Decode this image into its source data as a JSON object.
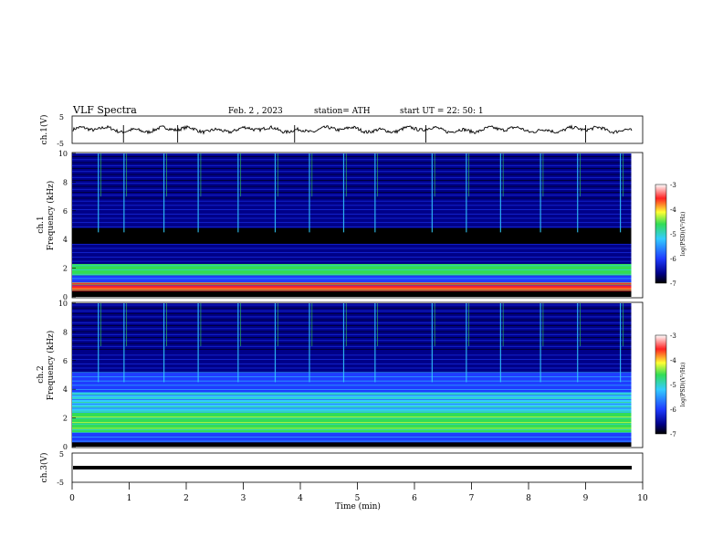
{
  "header": {
    "title": "VLF Spectra",
    "date": "Feb. 2 , 2023",
    "station": "station= ATH",
    "start": "start UT = 22: 50: 1"
  },
  "colors": {
    "black": "#000000",
    "navy": "#000088",
    "blue": "#1f3cff",
    "cyan": "#33ccff",
    "green": "#33dd55",
    "yellow": "#ffff33",
    "red": "#ff2222",
    "white": "#ffffff"
  },
  "chart_data": [
    {
      "type": "line",
      "panel": "ch1-waveform",
      "ylabel": "ch.1(V)",
      "ylim": [
        -5,
        5
      ],
      "yticks": [
        "5",
        "-5"
      ],
      "xlim": [
        0,
        10
      ],
      "signal": "low-amplitude noisy waveform near 0 V with occasional spikes",
      "spike_times_min": [
        0.9,
        1.85,
        3.9,
        6.2,
        9.0
      ]
    },
    {
      "type": "heatmap",
      "panel": "ch1-spectrogram",
      "ylabel": "ch.1 Frequency (kHz)",
      "ylim": [
        0,
        10
      ],
      "yticks": [
        "10",
        "8",
        "6",
        "4",
        "2",
        "0"
      ],
      "xlim": [
        0,
        9.8
      ],
      "colorbar": {
        "label": "log(PSD)(V²/Hz)",
        "range": [
          -7,
          -3
        ],
        "ticks": [
          "-3",
          "-4",
          "-5",
          "-6",
          "-7"
        ]
      },
      "bands_khz": [
        {
          "from": 0.0,
          "to": 0.4,
          "level": "black"
        },
        {
          "from": 0.4,
          "to": 1.0,
          "level": "mixed red yellow green"
        },
        {
          "from": 1.0,
          "to": 1.5,
          "level": "blue cyan"
        },
        {
          "from": 1.5,
          "to": 2.3,
          "level": "green cyan"
        },
        {
          "from": 2.3,
          "to": 3.7,
          "level": "navy blue"
        },
        {
          "from": 3.7,
          "to": 4.8,
          "level": "black"
        },
        {
          "from": 4.8,
          "to": 6.8,
          "level": "navy blue"
        },
        {
          "from": 6.8,
          "to": 10.0,
          "level": "navy black with cyan streaks"
        }
      ],
      "sferic_times_min": [
        0.45,
        0.9,
        1.6,
        2.2,
        2.9,
        3.55,
        4.15,
        4.75,
        5.3,
        6.3,
        6.9,
        7.5,
        8.2,
        8.85,
        9.6
      ]
    },
    {
      "type": "heatmap",
      "panel": "ch2-spectrogram",
      "ylabel": "ch.2 Frequency (kHz)",
      "ylim": [
        0,
        10
      ],
      "yticks": [
        "10",
        "8",
        "6",
        "4",
        "2",
        "0"
      ],
      "xlim": [
        0,
        9.8
      ],
      "colorbar": {
        "label": "log(PSD)(V²/Hz)",
        "range": [
          -7,
          -3
        ],
        "ticks": [
          "-3",
          "-4",
          "-5",
          "-6",
          "-7"
        ]
      },
      "bands_khz": [
        {
          "from": 0.0,
          "to": 0.3,
          "level": "black"
        },
        {
          "from": 0.3,
          "to": 1.0,
          "level": "blue cyan"
        },
        {
          "from": 1.0,
          "to": 2.4,
          "level": "green yellow"
        },
        {
          "from": 2.4,
          "to": 3.8,
          "level": "cyan green"
        },
        {
          "from": 3.8,
          "to": 5.2,
          "level": "blue cyan"
        },
        {
          "from": 5.2,
          "to": 6.6,
          "level": "navy blue"
        },
        {
          "from": 6.6,
          "to": 10.0,
          "level": "navy black with cyan streaks"
        }
      ],
      "sferic_times_min": [
        0.45,
        0.9,
        1.6,
        2.2,
        2.9,
        3.55,
        4.15,
        4.75,
        5.3,
        6.3,
        6.9,
        7.5,
        8.2,
        8.85,
        9.6
      ]
    },
    {
      "type": "line",
      "panel": "ch3-waveform",
      "ylabel": "ch.3(V)",
      "ylim": [
        -5,
        5
      ],
      "yticks": [
        "5",
        "-5"
      ],
      "xlim": [
        0,
        10
      ],
      "signal": "flat thick line near 0 V",
      "xlabel": "Time (min)",
      "xticks": [
        "0",
        "1",
        "2",
        "3",
        "4",
        "5",
        "6",
        "7",
        "8",
        "9",
        "10"
      ]
    }
  ]
}
